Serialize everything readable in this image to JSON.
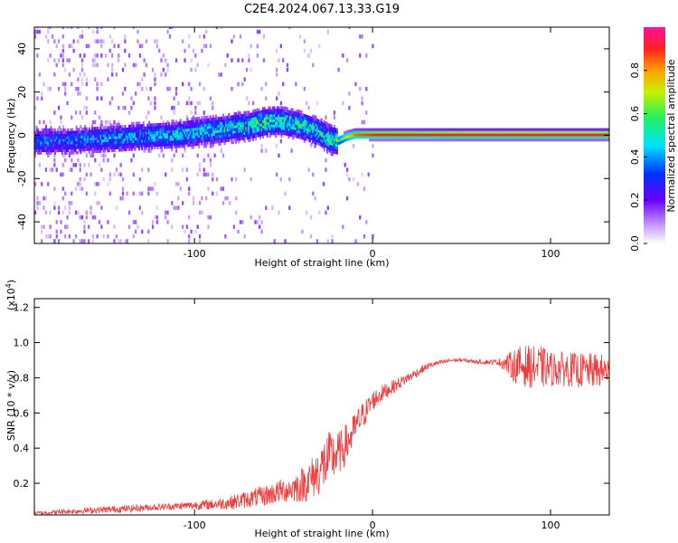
{
  "title": "C2E4.2024.067.13.33.G19",
  "chart_data": [
    {
      "type": "heatmap",
      "xlabel": "Height of straight line (km)",
      "ylabel": "Frequency (Hz)",
      "xlim": [
        -190,
        133
      ],
      "ylim": [
        -50,
        50
      ],
      "x_ticks": [
        -100,
        0,
        100
      ],
      "y_ticks": [
        -40,
        -20,
        0,
        20,
        40
      ],
      "x_tick_labels": [
        "-100",
        "0",
        "100"
      ],
      "y_tick_labels": [
        "-40",
        "-20",
        "0",
        "20",
        "40"
      ],
      "colorbar": {
        "label": "Normalized spectral amplitude",
        "range": [
          0,
          1
        ],
        "ticks": [
          0.0,
          0.2,
          0.4,
          0.6,
          0.8
        ],
        "tick_labels": [
          "0.0",
          "0.2",
          "0.4",
          "0.6",
          "0.8"
        ]
      },
      "ridge": {
        "x": [
          -190,
          -170,
          -150,
          -130,
          -110,
          -90,
          -70,
          -60,
          -50,
          -40,
          -30,
          -25,
          -20,
          -15,
          -10,
          0,
          50,
          100,
          133
        ],
        "y": [
          -3,
          -3,
          -2,
          -1,
          0,
          2,
          4,
          6,
          6,
          4,
          1,
          -2,
          -3,
          -1,
          0,
          0,
          0,
          0,
          0
        ],
        "amplitude": [
          0.35,
          0.35,
          0.38,
          0.4,
          0.42,
          0.45,
          0.5,
          0.52,
          0.5,
          0.48,
          0.45,
          0.5,
          0.55,
          0.7,
          0.85,
          0.9,
          0.95,
          0.95,
          0.95
        ]
      }
    },
    {
      "type": "line",
      "xlabel": "Height of straight line (km)",
      "ylabel": "SNR (10 * v/v)",
      "y_scale_label": "(x10",
      "y_scale_exp": "4",
      "xlim": [
        -190,
        133
      ],
      "ylim": [
        0.02,
        1.25
      ],
      "x_ticks": [
        -100,
        0,
        100
      ],
      "y_ticks": [
        0.2,
        0.4,
        0.6,
        0.8,
        1.0,
        1.2
      ],
      "x_tick_labels": [
        "-100",
        "0",
        "100"
      ],
      "y_tick_labels": [
        "0.2",
        "0.4",
        "0.6",
        "0.8",
        "1.0",
        "1.2"
      ],
      "series": [
        {
          "color": "#ef3b3b",
          "x": [
            -190,
            -170,
            -150,
            -130,
            -110,
            -90,
            -80,
            -70,
            -60,
            -50,
            -45,
            -40,
            -35,
            -30,
            -27,
            -24,
            -21,
            -18,
            -15,
            -12,
            -9,
            -6,
            -3,
            0,
            5,
            10,
            15,
            20,
            25,
            30,
            35,
            40,
            45,
            50,
            60,
            70,
            75,
            80,
            85,
            90,
            95,
            100,
            105,
            110,
            115,
            120,
            125,
            133
          ],
          "y": [
            0.03,
            0.04,
            0.05,
            0.06,
            0.07,
            0.08,
            0.09,
            0.11,
            0.13,
            0.16,
            0.17,
            0.19,
            0.22,
            0.27,
            0.31,
            0.34,
            0.36,
            0.38,
            0.42,
            0.47,
            0.53,
            0.58,
            0.62,
            0.67,
            0.71,
            0.74,
            0.77,
            0.8,
            0.83,
            0.86,
            0.88,
            0.89,
            0.9,
            0.9,
            0.89,
            0.89,
            0.88,
            0.87,
            0.87,
            0.86,
            0.86,
            0.85,
            0.85,
            0.85,
            0.84,
            0.84,
            0.84,
            0.84
          ],
          "noise": [
            0.01,
            0.015,
            0.02,
            0.02,
            0.02,
            0.03,
            0.04,
            0.05,
            0.06,
            0.07,
            0.08,
            0.1,
            0.12,
            0.14,
            0.16,
            0.16,
            0.14,
            0.12,
            0.12,
            0.1,
            0.09,
            0.08,
            0.07,
            0.06,
            0.05,
            0.04,
            0.035,
            0.03,
            0.025,
            0.02,
            0.015,
            0.012,
            0.01,
            0.01,
            0.012,
            0.015,
            0.05,
            0.1,
            0.12,
            0.12,
            0.12,
            0.1,
            0.1,
            0.1,
            0.1,
            0.1,
            0.1,
            0.09
          ]
        }
      ]
    }
  ]
}
